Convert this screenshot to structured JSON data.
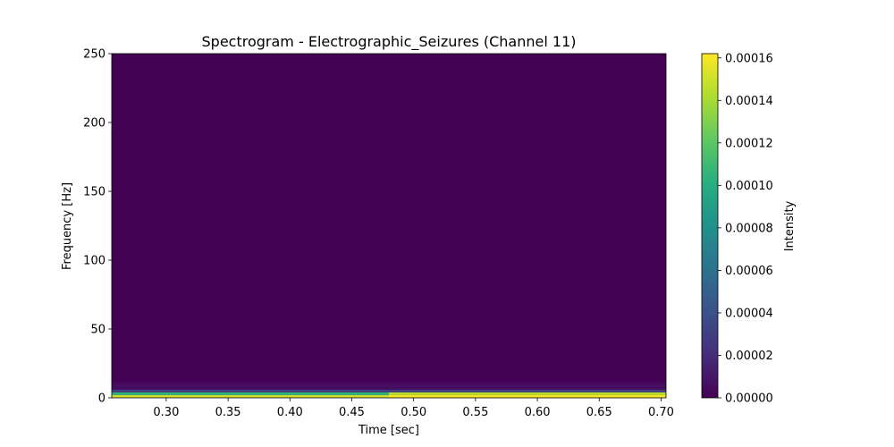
{
  "chart_data": {
    "type": "heatmap",
    "title": "Spectrogram - Electrographic_Seizures (Channel 11)",
    "xlabel": "Time [sec]",
    "ylabel": "Frequency [Hz]",
    "xlim": [
      0.256,
      0.704
    ],
    "ylim": [
      0,
      250
    ],
    "x_ticks": [
      0.3,
      0.35,
      0.4,
      0.45,
      0.5,
      0.55,
      0.6,
      0.65,
      0.7
    ],
    "x_tick_labels": [
      "0.30",
      "0.35",
      "0.40",
      "0.45",
      "0.50",
      "0.55",
      "0.60",
      "0.65",
      "0.70"
    ],
    "y_ticks": [
      0,
      50,
      100,
      150,
      200,
      250
    ],
    "y_tick_labels": [
      "0",
      "50",
      "100",
      "150",
      "200",
      "250"
    ],
    "colorbar": {
      "label": "Intensity",
      "colormap": "viridis",
      "range": [
        0,
        0.000162
      ],
      "ticks": [
        0,
        2e-05,
        4e-05,
        6e-05,
        8e-05,
        0.0001,
        0.00012,
        0.00014,
        0.00016
      ],
      "tick_labels": [
        "0.00000",
        "0.00002",
        "0.00004",
        "0.00006",
        "0.00008",
        "0.00010",
        "0.00012",
        "0.00014",
        "0.00016"
      ]
    },
    "bands": [
      {
        "freq_lo": 0,
        "freq_hi": 2,
        "time_lo": 0.256,
        "time_hi": 0.48,
        "value": 0.00015
      },
      {
        "freq_lo": 0,
        "freq_hi": 2,
        "time_lo": 0.48,
        "time_hi": 0.704,
        "value": 0.00016
      },
      {
        "freq_lo": 2,
        "freq_hi": 4,
        "time_lo": 0.256,
        "time_hi": 0.48,
        "value": 0.000105
      },
      {
        "freq_lo": 2,
        "freq_hi": 4,
        "time_lo": 0.48,
        "time_hi": 0.704,
        "value": 0.000145
      },
      {
        "freq_lo": 4,
        "freq_hi": 6,
        "time_lo": 0.256,
        "time_hi": 0.704,
        "value": 3e-05
      },
      {
        "freq_lo": 6,
        "freq_hi": 10,
        "time_lo": 0.256,
        "time_hi": 0.704,
        "value": 6e-06
      },
      {
        "freq_lo": 10,
        "freq_hi": 12,
        "time_lo": 0.256,
        "time_hi": 0.704,
        "value": 3e-06
      },
      {
        "freq_lo": 12,
        "freq_hi": 250,
        "time_lo": 0.256,
        "time_hi": 0.704,
        "value": 0.0
      }
    ]
  }
}
